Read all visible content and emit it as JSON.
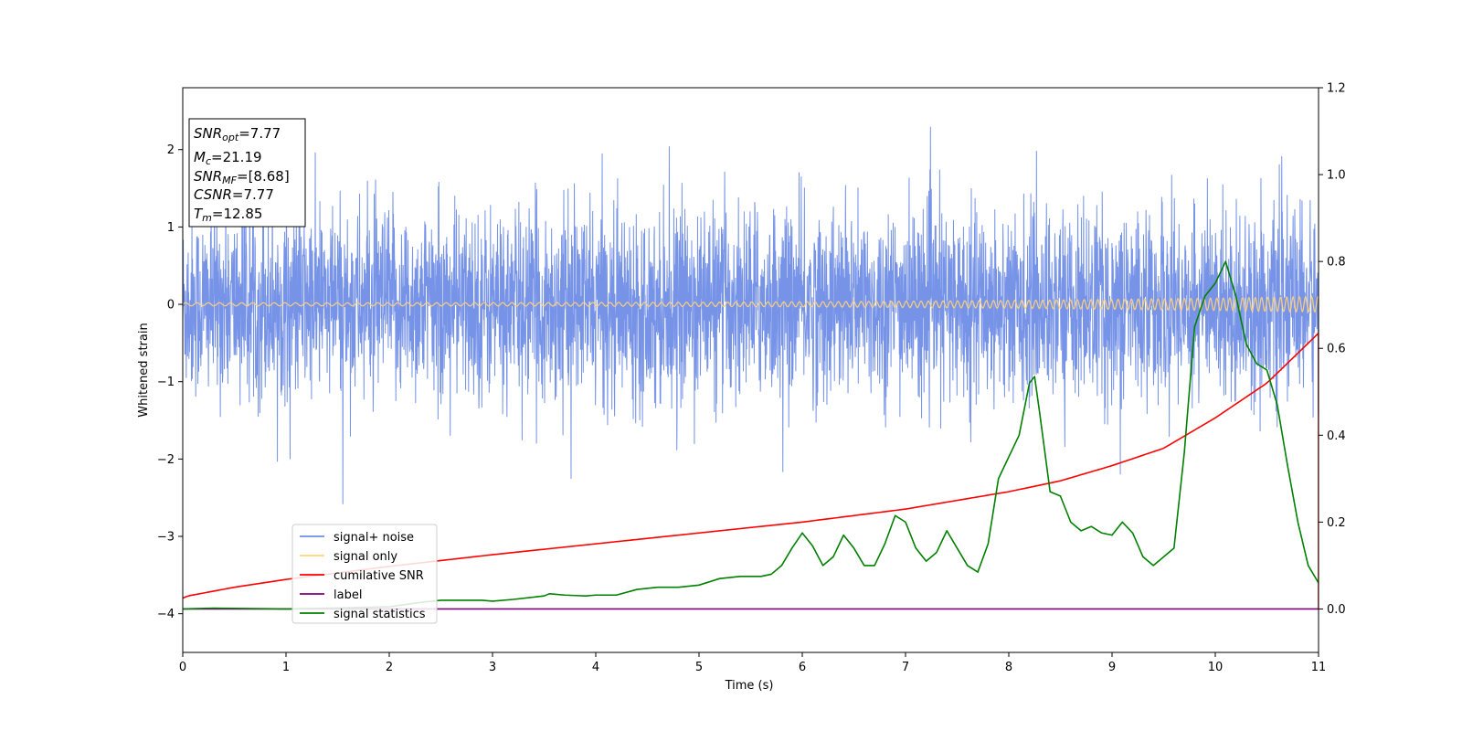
{
  "chart_data": {
    "type": "line",
    "xlabel": "Time (s)",
    "ylabel_left": "Whitened strain",
    "ylabel_right": "",
    "xlim": [
      0,
      11
    ],
    "ylim_left": [
      -4.5,
      2.8
    ],
    "ylim_right": [
      -0.1,
      1.2
    ],
    "x_ticks": [
      "0",
      "1",
      "2",
      "3",
      "4",
      "5",
      "6",
      "7",
      "8",
      "9",
      "10",
      "11"
    ],
    "y_left_ticks": [
      "2",
      "1",
      "0",
      "−1",
      "−2",
      "−3",
      "−4"
    ],
    "y_right_ticks": [
      "1.2",
      "1.0",
      "0.8",
      "0.6",
      "0.4",
      "0.2",
      "0.0"
    ],
    "grid": false,
    "legend_position": "lower-left",
    "legend": [
      {
        "label": "signal+ noise",
        "color": "#6f8de6"
      },
      {
        "label": "signal only",
        "color": "#ffd27a"
      },
      {
        "label": "cumilative SNR",
        "color": "#ff0000"
      },
      {
        "label": "label",
        "color": "#800080"
      },
      {
        "label": "signal statistics",
        "color": "#008000"
      }
    ],
    "info_box": {
      "line1_sym": "SNR",
      "line1_sub": "opt",
      "line1_val": "=7.77",
      "line2_sym": "M",
      "line2_sub": "c",
      "line2_val": "=21.19",
      "line3_sym": "SNR",
      "line3_sub": "MF",
      "line3_val": "=[8.68]",
      "line4_sym": "CSNR",
      "line4_val": "=7.77",
      "line5_sym": "T",
      "line5_sub": "m",
      "line5_val": "=12.85"
    },
    "series": [
      {
        "name": "signal+ noise",
        "axis": "left",
        "style": "dense noise, approx std 0.6, range about -2.7 to 2.5",
        "noise_sigma": 0.6
      },
      {
        "name": "signal only",
        "axis": "left",
        "style": "chirp oscillation around 0, amplitude 0.02 growing to 0.1"
      },
      {
        "name": "cumilative SNR",
        "axis": "right",
        "x": [
          0,
          0.05,
          0.5,
          1,
          2,
          3,
          4,
          5,
          6,
          7,
          8,
          8.5,
          9,
          9.5,
          10,
          10.5,
          11
        ],
        "y": [
          0.025,
          0.03,
          0.05,
          0.068,
          0.098,
          0.125,
          0.15,
          0.175,
          0.2,
          0.23,
          0.27,
          0.295,
          0.33,
          0.37,
          0.44,
          0.52,
          0.635
        ]
      },
      {
        "name": "label",
        "axis": "right",
        "x": [
          0,
          11
        ],
        "y": [
          0.0,
          0.0
        ]
      },
      {
        "name": "signal statistics",
        "axis": "right",
        "x": [
          0,
          0.3,
          1,
          2,
          2.3,
          2.5,
          2.7,
          2.9,
          3.0,
          3.2,
          3.5,
          3.55,
          3.7,
          3.9,
          4.0,
          4.2,
          4.4,
          4.6,
          4.8,
          5.0,
          5.2,
          5.4,
          5.6,
          5.7,
          5.8,
          5.9,
          6.0,
          6.1,
          6.2,
          6.3,
          6.4,
          6.5,
          6.6,
          6.7,
          6.8,
          6.9,
          7.0,
          7.1,
          7.2,
          7.3,
          7.4,
          7.5,
          7.6,
          7.7,
          7.8,
          7.9,
          8.0,
          8.1,
          8.2,
          8.25,
          8.3,
          8.4,
          8.5,
          8.6,
          8.7,
          8.8,
          8.9,
          9.0,
          9.1,
          9.2,
          9.3,
          9.4,
          9.5,
          9.6,
          9.7,
          9.8,
          9.9,
          10.0,
          10.1,
          10.2,
          10.3,
          10.4,
          10.5,
          10.6,
          10.7,
          10.8,
          10.9,
          11.0
        ],
        "y": [
          0.0,
          0.002,
          0.0,
          0.005,
          0.015,
          0.02,
          0.02,
          0.02,
          0.018,
          0.022,
          0.03,
          0.035,
          0.032,
          0.03,
          0.032,
          0.032,
          0.045,
          0.05,
          0.05,
          0.055,
          0.07,
          0.075,
          0.075,
          0.08,
          0.1,
          0.14,
          0.175,
          0.145,
          0.1,
          0.12,
          0.17,
          0.14,
          0.1,
          0.1,
          0.15,
          0.215,
          0.2,
          0.14,
          0.11,
          0.13,
          0.18,
          0.14,
          0.1,
          0.085,
          0.15,
          0.3,
          0.35,
          0.4,
          0.52,
          0.535,
          0.45,
          0.27,
          0.26,
          0.2,
          0.18,
          0.19,
          0.175,
          0.17,
          0.2,
          0.175,
          0.12,
          0.1,
          0.12,
          0.14,
          0.36,
          0.65,
          0.72,
          0.75,
          0.8,
          0.72,
          0.61,
          0.565,
          0.55,
          0.47,
          0.33,
          0.2,
          0.1,
          0.06
        ]
      }
    ]
  }
}
